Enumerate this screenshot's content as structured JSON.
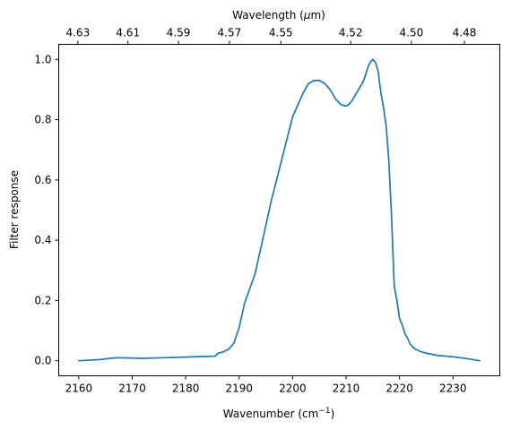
{
  "chart_data": {
    "type": "line",
    "xlabel": "Wavenumber (cm",
    "xlabel_sup": "−1",
    "xlabel_end": ")",
    "ylabel": "Filter response",
    "top_xlabel": "Wavelength (",
    "top_xlabel_mu": "μ",
    "top_xlabel_end": "m)",
    "xlim": [
      2156.25,
      2238.75
    ],
    "ylim": [
      -0.05,
      1.05
    ],
    "x_ticks": [
      2160,
      2170,
      2180,
      2190,
      2200,
      2210,
      2220,
      2230
    ],
    "x_tick_labels": [
      "2160",
      "2170",
      "2180",
      "2190",
      "2200",
      "2210",
      "2220",
      "2230"
    ],
    "y_ticks": [
      0.0,
      0.2,
      0.4,
      0.6,
      0.8,
      1.0
    ],
    "y_tick_labels": [
      "0.0",
      "0.2",
      "0.4",
      "0.6",
      "0.8",
      "1.0"
    ],
    "top_ticks_wavenumber": [
      2159.83,
      2169.2,
      2178.65,
      2188.18,
      2197.8,
      2210.87,
      2222.22,
      2232.14
    ],
    "top_tick_labels": [
      "4.63",
      "4.61",
      "4.59",
      "4.57",
      "4.55",
      "4.52",
      "4.50",
      "4.48"
    ],
    "grid": false,
    "colors": {
      "series": "#1f77b4"
    },
    "series": [
      {
        "x": [
          2160,
          2164,
          2167,
          2172,
          2176,
          2180,
          2183,
          2185.5,
          2186,
          2186.5,
          2187,
          2188,
          2189,
          2190,
          2190.5,
          2191,
          2192,
          2193,
          2193.5,
          2194,
          2195,
          2196,
          2197,
          2198,
          2199,
          2200,
          2201,
          2202,
          2203,
          2204,
          2205,
          2206,
          2207,
          2208,
          2209,
          2210,
          2210.5,
          2211,
          2212,
          2213,
          2213.5,
          2214,
          2214.5,
          2215,
          2215.5,
          2216,
          2216.5,
          2217,
          2217.5,
          2218,
          2218.5,
          2219,
          2219.5,
          2220,
          2220.5,
          2221,
          2221.5,
          2222,
          2222.5,
          2223,
          2224,
          2225,
          2227,
          2230,
          2233,
          2235
        ],
        "y": [
          0.0,
          0.004,
          0.01,
          0.008,
          0.01,
          0.012,
          0.014,
          0.015,
          0.024,
          0.027,
          0.029,
          0.038,
          0.058,
          0.11,
          0.15,
          0.19,
          0.24,
          0.29,
          0.33,
          0.37,
          0.45,
          0.53,
          0.6,
          0.67,
          0.74,
          0.81,
          0.85,
          0.89,
          0.92,
          0.93,
          0.93,
          0.92,
          0.9,
          0.87,
          0.85,
          0.845,
          0.85,
          0.86,
          0.89,
          0.92,
          0.94,
          0.97,
          0.99,
          1.0,
          0.99,
          0.96,
          0.89,
          0.84,
          0.78,
          0.66,
          0.48,
          0.25,
          0.2,
          0.14,
          0.12,
          0.09,
          0.075,
          0.055,
          0.045,
          0.038,
          0.03,
          0.025,
          0.018,
          0.013,
          0.006,
          0.0
        ]
      }
    ]
  }
}
